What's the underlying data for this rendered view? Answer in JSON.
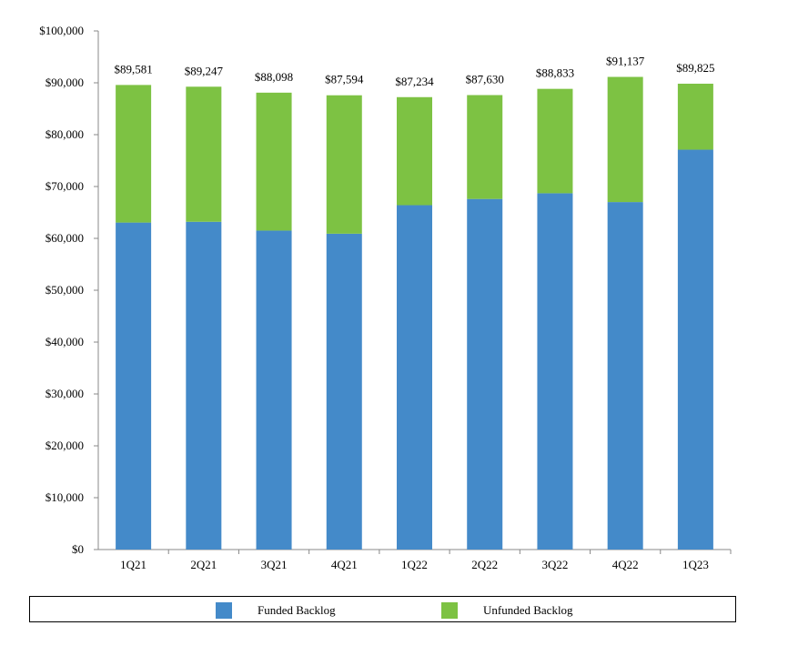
{
  "chart_data": {
    "type": "bar",
    "stacked": true,
    "title": "",
    "xlabel": "",
    "ylabel": "",
    "ylim": [
      0,
      100000
    ],
    "yticks": [
      "$0",
      "$10,000",
      "$20,000",
      "$30,000",
      "$40,000",
      "$50,000",
      "$60,000",
      "$70,000",
      "$80,000",
      "$90,000",
      "$100,000"
    ],
    "categories": [
      "1Q21",
      "2Q21",
      "3Q21",
      "4Q21",
      "1Q22",
      "2Q22",
      "3Q22",
      "4Q22",
      "1Q23"
    ],
    "series": [
      {
        "name": "Funded Backlog",
        "color": "#448AC9",
        "values": [
          63050,
          63200,
          61500,
          60900,
          66400,
          67600,
          68700,
          67000,
          77100
        ]
      },
      {
        "name": "Unfunded Backlog",
        "color": "#7DC243",
        "values": [
          26531,
          26047,
          26598,
          26694,
          20834,
          20030,
          20133,
          24137,
          12725
        ]
      }
    ],
    "totals": [
      89581,
      89247,
      88098,
      87594,
      87234,
      87630,
      88833,
      91137,
      89825
    ],
    "total_labels": [
      "$89,581",
      "$89,247",
      "$88,098",
      "$87,594",
      "$87,234",
      "$87,630",
      "$88,833",
      "$91,137",
      "$89,825"
    ],
    "grid": false,
    "legend_position": "bottom"
  }
}
